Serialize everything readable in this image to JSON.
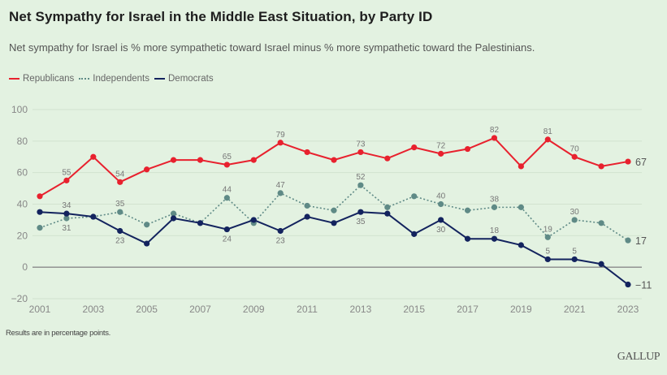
{
  "chart_data": {
    "type": "line",
    "title": "Net Sympathy for Israel in the Middle East Situation, by Party ID",
    "subtitle": "Net sympathy for Israel is % more sympathetic toward Israel minus % more sympathetic toward the Palestinians.",
    "xlabel": "",
    "ylabel": "",
    "ylim": [
      -20,
      100
    ],
    "yticks": [
      -20,
      0,
      20,
      40,
      60,
      80,
      100
    ],
    "xlim": [
      2001,
      2023
    ],
    "xticks": [
      2001,
      2003,
      2005,
      2007,
      2009,
      2011,
      2013,
      2015,
      2017,
      2019,
      2021,
      2023
    ],
    "grid": true,
    "legend_position": "top-left",
    "x": [
      2001,
      2002,
      2003,
      2004,
      2005,
      2006,
      2007,
      2008,
      2009,
      2010,
      2011,
      2012,
      2013,
      2014,
      2015,
      2016,
      2017,
      2018,
      2019,
      2020,
      2021,
      2022,
      2023
    ],
    "series": [
      {
        "name": "Republicans",
        "color": "#e8212e",
        "style": "solid",
        "values": [
          45,
          55,
          70,
          54,
          62,
          68,
          68,
          65,
          68,
          79,
          73,
          68,
          73,
          69,
          76,
          72,
          75,
          82,
          64,
          81,
          70,
          64,
          67
        ],
        "labels": [
          {
            "year": 2002,
            "text": "55",
            "pos": "above"
          },
          {
            "year": 2004,
            "text": "54",
            "pos": "above"
          },
          {
            "year": 2008,
            "text": "65",
            "pos": "above"
          },
          {
            "year": 2010,
            "text": "79",
            "pos": "above"
          },
          {
            "year": 2013,
            "text": "73",
            "pos": "above"
          },
          {
            "year": 2016,
            "text": "72",
            "pos": "above"
          },
          {
            "year": 2018,
            "text": "82",
            "pos": "above"
          },
          {
            "year": 2020,
            "text": "81",
            "pos": "above"
          },
          {
            "year": 2021,
            "text": "70",
            "pos": "above"
          }
        ],
        "end_label": "67"
      },
      {
        "name": "Independents",
        "color": "#5f8a86",
        "style": "dotted",
        "values": [
          25,
          31,
          32,
          35,
          27,
          34,
          28,
          44,
          28,
          47,
          39,
          36,
          52,
          38,
          45,
          40,
          36,
          38,
          38,
          19,
          30,
          28,
          17
        ],
        "labels": [
          {
            "year": 2002,
            "text": "31",
            "pos": "below"
          },
          {
            "year": 2004,
            "text": "35",
            "pos": "above"
          },
          {
            "year": 2008,
            "text": "44",
            "pos": "above"
          },
          {
            "year": 2010,
            "text": "47",
            "pos": "above"
          },
          {
            "year": 2013,
            "text": "52",
            "pos": "above"
          },
          {
            "year": 2016,
            "text": "40",
            "pos": "above"
          },
          {
            "year": 2018,
            "text": "38",
            "pos": "above"
          },
          {
            "year": 2020,
            "text": "19",
            "pos": "above"
          },
          {
            "year": 2021,
            "text": "30",
            "pos": "above"
          }
        ],
        "end_label": "17"
      },
      {
        "name": "Democrats",
        "color": "#13235e",
        "style": "solid",
        "values": [
          35,
          34,
          32,
          23,
          15,
          31,
          28,
          24,
          30,
          23,
          32,
          28,
          35,
          34,
          21,
          30,
          18,
          18,
          14,
          5,
          5,
          2,
          -11
        ],
        "labels": [
          {
            "year": 2002,
            "text": "34",
            "pos": "above"
          },
          {
            "year": 2004,
            "text": "23",
            "pos": "below"
          },
          {
            "year": 2008,
            "text": "24",
            "pos": "below"
          },
          {
            "year": 2010,
            "text": "23",
            "pos": "below"
          },
          {
            "year": 2013,
            "text": "35",
            "pos": "below"
          },
          {
            "year": 2016,
            "text": "30",
            "pos": "below"
          },
          {
            "year": 2018,
            "text": "18",
            "pos": "above"
          },
          {
            "year": 2020,
            "text": "5",
            "pos": "above"
          },
          {
            "year": 2021,
            "text": "5",
            "pos": "above"
          }
        ],
        "end_label": "−11"
      }
    ]
  },
  "header": {
    "title": "Net Sympathy for Israel in the Middle East Situation, by Party ID",
    "subtitle": "Net sympathy for Israel is % more sympathetic toward Israel minus % more sympathetic toward the Palestinians."
  },
  "legend": {
    "items": [
      {
        "label": "Republicans",
        "color": "#e8212e",
        "style": "solid"
      },
      {
        "label": "Independents",
        "color": "#5f8a86",
        "style": "dotted"
      },
      {
        "label": "Democrats",
        "color": "#13235e",
        "style": "solid"
      }
    ]
  },
  "footer": {
    "note": "Results are in percentage points.",
    "brand": "GALLUP"
  }
}
